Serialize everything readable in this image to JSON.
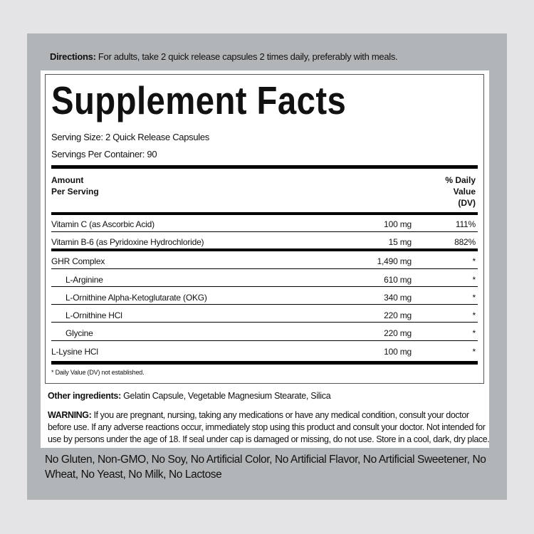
{
  "directions": {
    "label": "Directions:",
    "text": " For adults, take 2 quick release capsules 2 times daily, preferably with meals."
  },
  "facts": {
    "title": "Supplement Facts",
    "serving_size": "Serving Size: 2 Quick Release Capsules",
    "servings_per_container": "Servings Per Container: 90",
    "header_amount_line1": "Amount",
    "header_amount_line2": "Per Serving",
    "header_dv_line1": "% Daily",
    "header_dv_line2": "Value",
    "header_dv_line3": "(DV)",
    "rows": [
      {
        "name": "Vitamin C (as Ascorbic Acid)",
        "amount": "100 mg",
        "dv": "111%"
      },
      {
        "name": "Vitamin B-6 (as Pyridoxine Hydrochloride)",
        "amount": "15 mg",
        "dv": "882%"
      },
      {
        "name": "GHR Complex",
        "amount": "1,490 mg",
        "dv": "*"
      },
      {
        "name": "L-Arginine",
        "amount": "610 mg",
        "dv": "*"
      },
      {
        "name": "L-Ornithine Alpha-Ketoglutarate (OKG)",
        "amount": "340 mg",
        "dv": "*"
      },
      {
        "name": "L-Ornithine HCl",
        "amount": "220 mg",
        "dv": "*"
      },
      {
        "name": "Glycine",
        "amount": "220 mg",
        "dv": "*"
      },
      {
        "name": "L-Lysine HCl",
        "amount": "100 mg",
        "dv": "*"
      }
    ],
    "footnote": "* Daily Value (DV) not established."
  },
  "other_ingredients": {
    "label": "Other ingredients:",
    "text": " Gelatin Capsule, Vegetable Magnesium Stearate, Silica"
  },
  "warning": {
    "label": "WARNING:",
    "text": " If you are pregnant, nursing, taking any medications or have any medical condition, consult your doctor before use. If any adverse reactions occur, immediately stop using this product and consult your doctor. Not intended for use by persons under the age of 18. If seal under cap is damaged or missing, do not use. Store in a cool, dark, dry place."
  },
  "free_from": "No Gluten, Non-GMO, No Soy, No Artificial Color, No Artificial Flavor, No Artificial Sweetener, No Wheat, No Yeast, No Milk, No Lactose"
}
